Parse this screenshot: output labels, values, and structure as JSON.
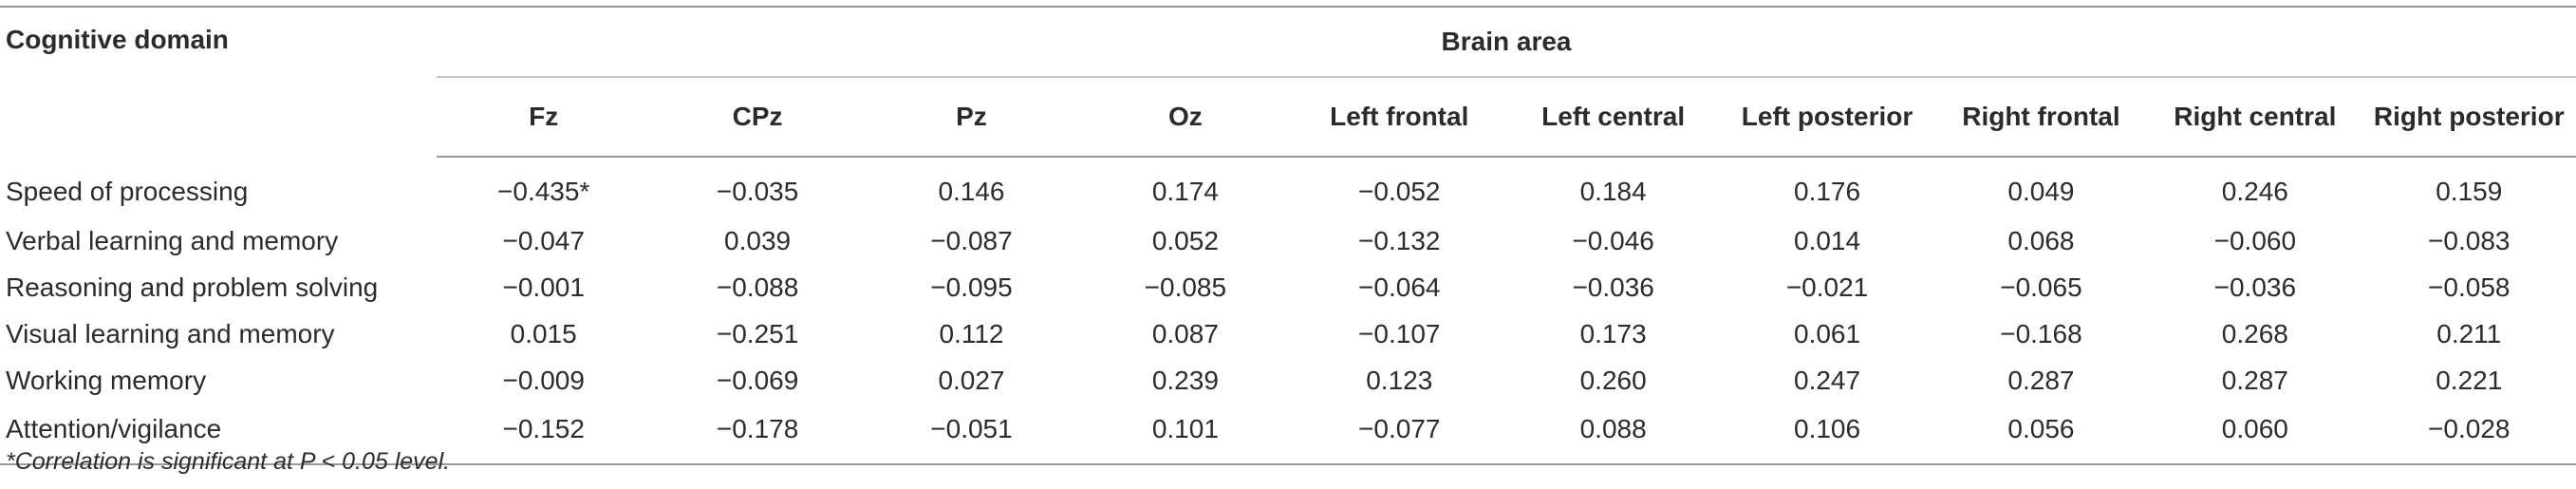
{
  "table": {
    "domain_header": "Cognitive domain",
    "group_header": "Brain area",
    "columns": [
      "Fz",
      "CPz",
      "Pz",
      "Oz",
      "Left frontal",
      "Left central",
      "Left posterior",
      "Right frontal",
      "Right central",
      "Right posterior"
    ],
    "rows": [
      {
        "domain": "Speed of processing",
        "values": [
          "−0.435*",
          "−0.035",
          "0.146",
          "0.174",
          "−0.052",
          "0.184",
          "0.176",
          "0.049",
          "0.246",
          "0.159"
        ]
      },
      {
        "domain": "Verbal learning and memory",
        "values": [
          "−0.047",
          "0.039",
          "−0.087",
          "0.052",
          "−0.132",
          "−0.046",
          "0.014",
          "0.068",
          "−0.060",
          "−0.083"
        ]
      },
      {
        "domain": "Reasoning and problem solving",
        "values": [
          "−0.001",
          "−0.088",
          "−0.095",
          "−0.085",
          "−0.064",
          "−0.036",
          "−0.021",
          "−0.065",
          "−0.036",
          "−0.058"
        ]
      },
      {
        "domain": "Visual learning and memory",
        "values": [
          "0.015",
          "−0.251",
          "0.112",
          "0.087",
          "−0.107",
          "0.173",
          "0.061",
          "−0.168",
          "0.268",
          "0.211"
        ]
      },
      {
        "domain": "Working memory",
        "values": [
          "−0.009",
          "−0.069",
          "0.027",
          "0.239",
          "0.123",
          "0.260",
          "0.247",
          "0.287",
          "0.287",
          "0.221"
        ]
      },
      {
        "domain": "Attention/vigilance",
        "values": [
          "−0.152",
          "−0.178",
          "−0.051",
          "0.101",
          "−0.077",
          "0.088",
          "0.106",
          "0.056",
          "0.060",
          "−0.028"
        ]
      }
    ]
  },
  "footnote": "*Correlation is significant at P < 0.05 level."
}
